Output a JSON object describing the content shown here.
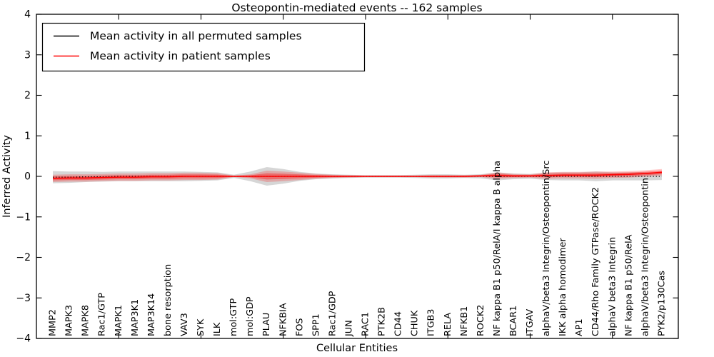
{
  "chart_data": {
    "type": "line",
    "title": "Osteopontin-mediated events -- 162 samples",
    "xlabel": "Cellular Entities",
    "ylabel": "Inferred Activity",
    "ylim": [
      -4,
      4
    ],
    "xlim": [
      0,
      39
    ],
    "grid": false,
    "legend_position": "upper left",
    "yticks": [
      -4,
      -3,
      -2,
      -1,
      0,
      1,
      2,
      3,
      4
    ],
    "ytick_labels": [
      "−4",
      "−3",
      "−2",
      "−1",
      "0",
      "1",
      "2",
      "3",
      "4"
    ],
    "xticks_unlabeled": [
      5,
      10,
      15,
      20,
      25,
      30,
      35
    ],
    "colors": {
      "permuted_line": "#000000",
      "patient_line": "#ff0000",
      "permuted_band": "#999999",
      "patient_band": "#ff0000"
    },
    "legend": [
      {
        "label": "Mean activity in all permuted samples",
        "color": "#000000"
      },
      {
        "label": "Mean activity in patient samples",
        "color": "#ff0000"
      }
    ],
    "categories": [
      "MMP2",
      "MAPK3",
      "MAPK8",
      "Rac1/GTP",
      "MAPK1",
      "MAP3K1",
      "MAP3K14",
      "bone resorption",
      "VAV3",
      "SYK",
      "ILK",
      "mol:GTP",
      "mol:GDP",
      "PLAU",
      "NFKBIA",
      "FOS",
      "SPP1",
      "Rac1/GDP",
      "JUN",
      "RAC1",
      "PTK2B",
      "CD44",
      "CHUK",
      "ITGB3",
      "RELA",
      "NFKB1",
      "ROCK2",
      "NF kappa B1 p50/RelA/I kappa B alpha",
      "BCAR1",
      "ITGAV",
      "alphaV/beta3 Integrin/Osteopontin/Src",
      "IKK alpha homodimer",
      "AP1",
      "CD44/Rho Family GTPase/ROCK2",
      "alphaV beta3 Integrin",
      "NF kappa B1 p50/RelA",
      "alphaV/beta3 Integrin/Osteopontin",
      "PYK2/p130Cas"
    ],
    "series": [
      {
        "name": "Mean activity in all permuted samples",
        "mean": [
          -0.02,
          -0.02,
          -0.01,
          -0.01,
          0,
          0,
          0,
          0,
          0,
          0,
          0,
          0,
          0,
          0,
          0,
          0,
          0,
          0,
          0,
          0,
          0,
          0,
          0,
          0,
          0,
          0,
          0,
          0,
          0,
          0,
          0,
          0,
          0,
          0,
          0,
          0,
          0,
          0
        ],
        "std": [
          0.15,
          0.14,
          0.13,
          0.12,
          0.12,
          0.12,
          0.12,
          0.12,
          0.12,
          0.11,
          0.1,
          0.04,
          0.12,
          0.23,
          0.18,
          0.11,
          0.07,
          0.05,
          0.04,
          0.03,
          0.03,
          0.03,
          0.04,
          0.05,
          0.05,
          0.04,
          0.05,
          0.1,
          0.07,
          0.06,
          0.09,
          0.1,
          0.1,
          0.12,
          0.1,
          0.1,
          0.1,
          0.09
        ]
      },
      {
        "name": "Mean activity in patient samples",
        "mean": [
          -0.05,
          -0.04,
          -0.04,
          -0.03,
          -0.02,
          -0.02,
          -0.01,
          -0.01,
          0,
          0,
          0,
          0,
          0,
          0,
          0,
          0,
          0,
          0,
          0,
          0,
          0,
          0,
          0,
          0,
          0,
          0,
          0.01,
          0.02,
          0.01,
          0.01,
          0.02,
          0.03,
          0.03,
          0.03,
          0.04,
          0.05,
          0.07,
          0.1
        ],
        "std": [
          0.09,
          0.09,
          0.09,
          0.09,
          0.09,
          0.09,
          0.09,
          0.09,
          0.09,
          0.09,
          0.08,
          0.02,
          0.05,
          0.14,
          0.12,
          0.09,
          0.06,
          0.04,
          0.03,
          0.02,
          0.02,
          0.02,
          0.02,
          0.03,
          0.03,
          0.03,
          0.03,
          0.08,
          0.05,
          0.04,
          0.08,
          0.08,
          0.08,
          0.09,
          0.08,
          0.08,
          0.08,
          0.08
        ]
      }
    ]
  }
}
